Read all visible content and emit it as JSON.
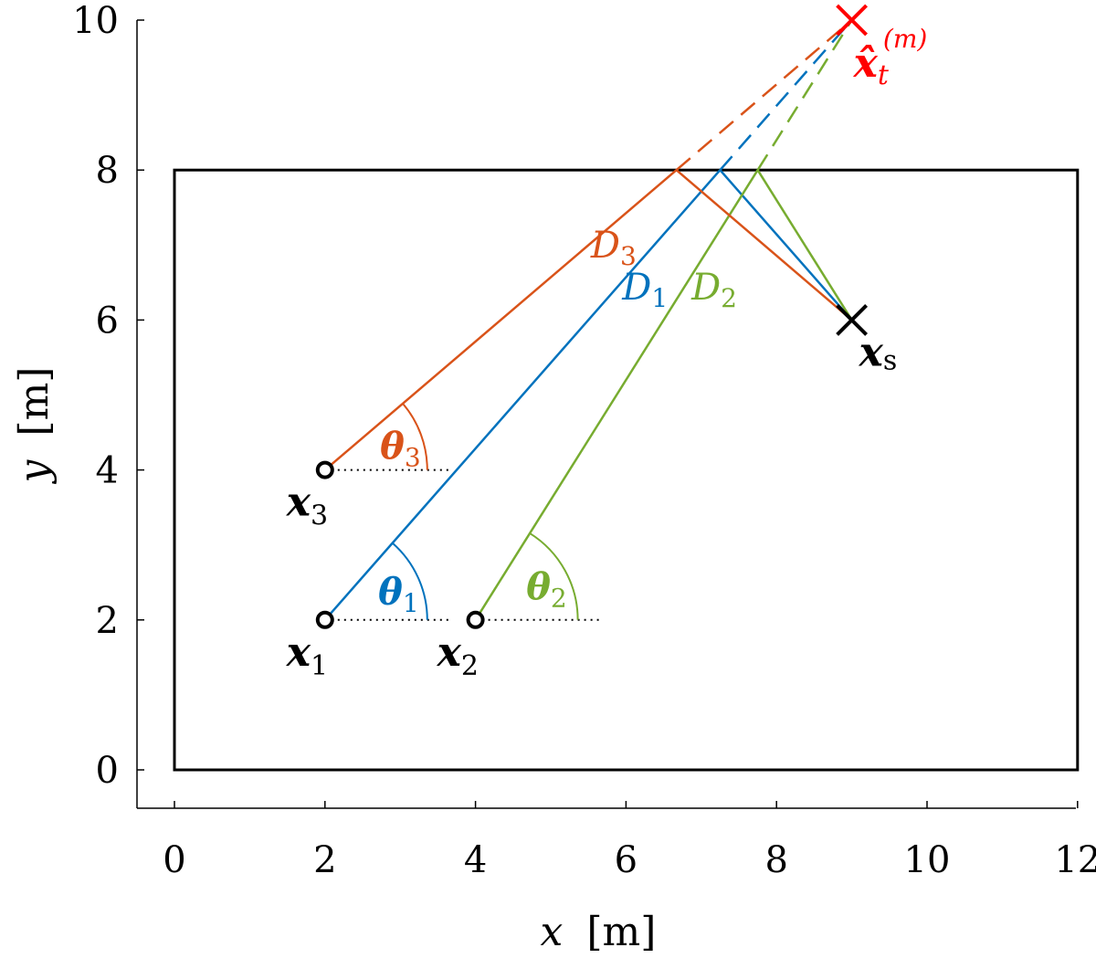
{
  "axes": {
    "x_label": "x",
    "y_label": "y",
    "unit": "[m]",
    "xlim": [
      -0.5,
      12
    ],
    "ylim": [
      -0.5,
      10
    ],
    "x_ticks": [
      "0",
      "2",
      "4",
      "6",
      "8",
      "10",
      "12"
    ],
    "y_ticks": [
      "0",
      "2",
      "4",
      "6",
      "8",
      "10"
    ]
  },
  "room": {
    "x": [
      0,
      12
    ],
    "y": [
      0,
      8
    ]
  },
  "colors": {
    "path1": "#0072BD",
    "path2": "#77AC30",
    "path3": "#D95319",
    "estimate": "#FF0000",
    "source": "#000000"
  },
  "receivers": [
    {
      "id": "1",
      "x": 2,
      "y": 2,
      "label": "x",
      "sub": "1",
      "angle_label": "θ",
      "dist_label": "D",
      "reflect_x": 7.25,
      "reflect_y": 8,
      "color": "#0072BD"
    },
    {
      "id": "2",
      "x": 4,
      "y": 2,
      "label": "x",
      "sub": "2",
      "angle_label": "θ",
      "dist_label": "D",
      "reflect_x": 7.75,
      "reflect_y": 8,
      "color": "#77AC30"
    },
    {
      "id": "3",
      "x": 2,
      "y": 4,
      "label": "x",
      "sub": "3",
      "angle_label": "θ",
      "dist_label": "D",
      "reflect_x": 6.67,
      "reflect_y": 8,
      "color": "#D95319"
    }
  ],
  "source": {
    "x": 9,
    "y": 6,
    "label": "x",
    "sub": "s"
  },
  "estimate": {
    "x": 9,
    "y": 10,
    "label": "x̂",
    "sub": "t",
    "sup": "(m)"
  }
}
